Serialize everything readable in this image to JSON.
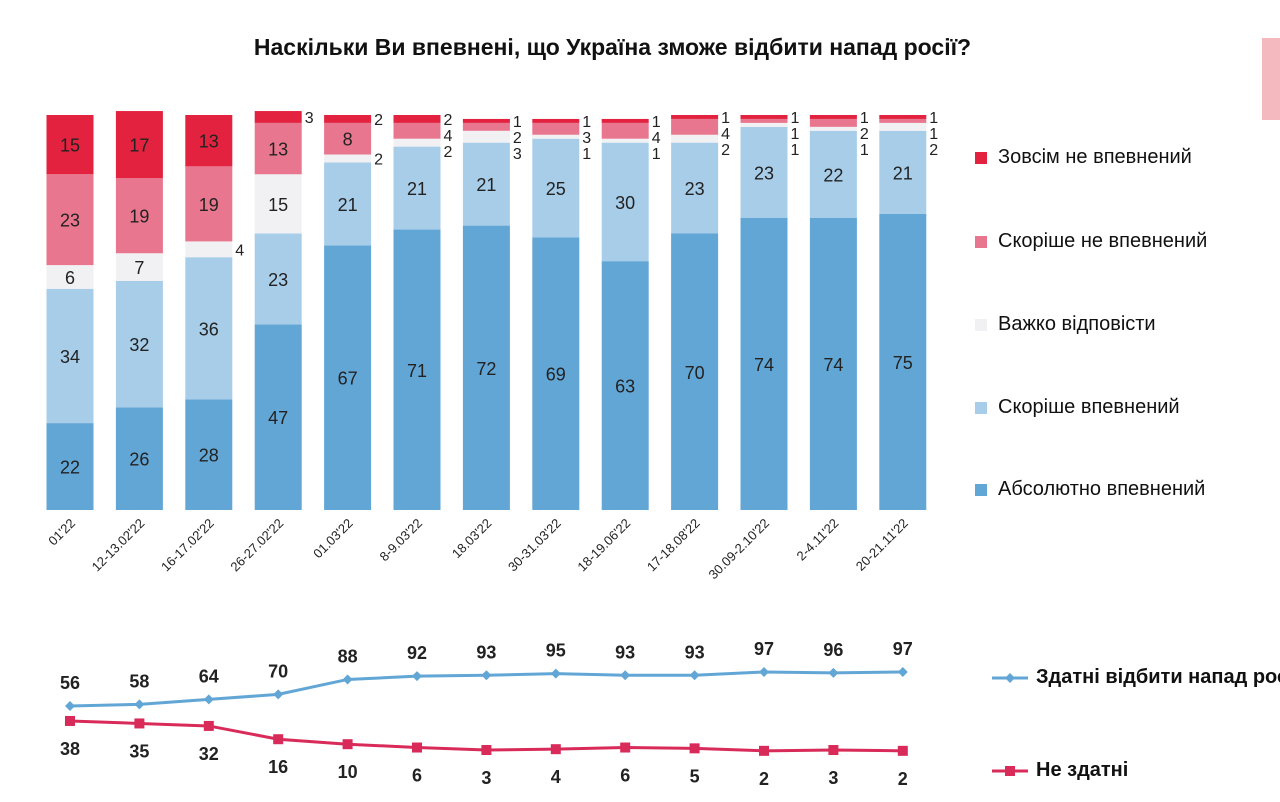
{
  "chart_data": [
    {
      "type": "bar",
      "stacked": true,
      "title": "Наскільки Ви впевнені, що Україна зможе відбити напад росії?",
      "categories": [
        "01'22",
        "12-13.02'22",
        "16-17.02'22",
        "26-27.02'22",
        "01.03'22",
        "8-9.03'22",
        "18.03'22",
        "30-31.03'22",
        "18-19.06'22",
        "17-18.08'22",
        "30.09-2.10'22",
        "2-4.11'22",
        "20-21.11'22"
      ],
      "ylim": [
        0,
        100
      ],
      "legend": "right",
      "series": [
        {
          "name": "Абсолютно впевнений",
          "color": "#62a6d6",
          "values": [
            22,
            26,
            28,
            47,
            67,
            71,
            72,
            69,
            63,
            70,
            74,
            74,
            75
          ]
        },
        {
          "name": "Скоріше впевнений",
          "color": "#a8cde9",
          "values": [
            34,
            32,
            36,
            23,
            21,
            21,
            21,
            25,
            30,
            23,
            23,
            22,
            21
          ]
        },
        {
          "name": "Важко відповісти",
          "color": "#f1f1f3",
          "values": [
            6,
            7,
            4,
            15,
            2,
            2,
            3,
            1,
            1,
            2,
            1,
            1,
            2
          ]
        },
        {
          "name": "Скоріше не впевнений",
          "color": "#e8768e",
          "values": [
            23,
            19,
            19,
            13,
            8,
            4,
            2,
            3,
            4,
            4,
            1,
            2,
            1
          ]
        },
        {
          "name": "Зовсім не впевнений",
          "color": "#e2223f",
          "values": [
            15,
            17,
            13,
            3,
            2,
            2,
            1,
            1,
            1,
            1,
            1,
            1,
            1
          ]
        }
      ]
    },
    {
      "type": "line",
      "categories": [
        "01'22",
        "12-13.02'22",
        "16-17.02'22",
        "26-27.02'22",
        "01.03'22",
        "8-9.03'22",
        "18.03'22",
        "30-31.03'22",
        "18-19.06'22",
        "17-18.08'22",
        "30.09-2.10'22",
        "2-4.11'22",
        "20-21.11'22"
      ],
      "legend": "right",
      "series": [
        {
          "name": "Здатні відбити напад росії",
          "color": "#62a6d6",
          "marker": "diamond",
          "values": [
            56,
            58,
            64,
            70,
            88,
            92,
            93,
            95,
            93,
            93,
            97,
            96,
            97
          ]
        },
        {
          "name": "Не здатні",
          "color": "#d92b5a",
          "marker": "square",
          "values": [
            38,
            35,
            32,
            16,
            10,
            6,
            3,
            4,
            6,
            5,
            2,
            3,
            2
          ]
        }
      ]
    }
  ]
}
